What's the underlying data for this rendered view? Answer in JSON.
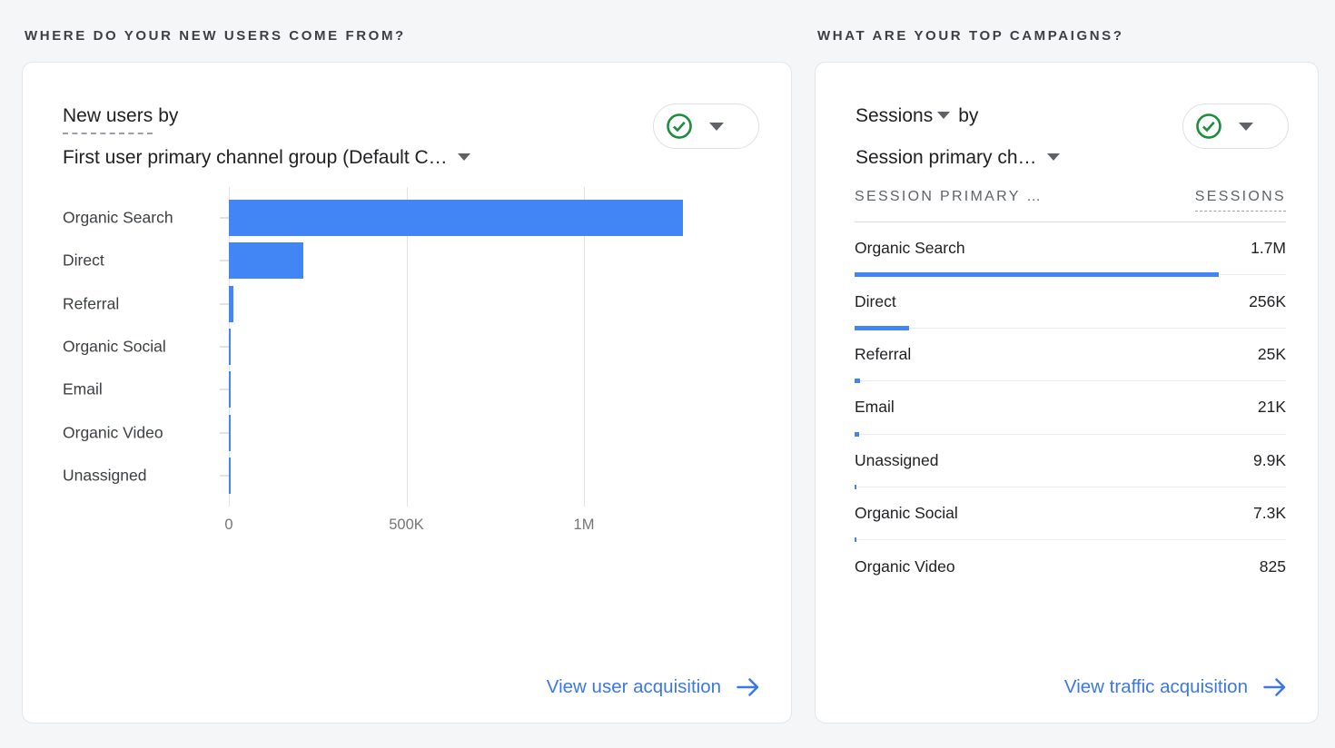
{
  "colors": {
    "bar_blue": "#4285f4",
    "link_blue": "#3b78e7",
    "check_green": "#1e8e3e",
    "background": "#f4f6f8"
  },
  "sections": {
    "left": {
      "heading": "WHERE DO YOUR NEW USERS COME FROM?",
      "metric": "New users",
      "by_label": "by",
      "dimension": "First user primary channel group (Default C…",
      "link_label": "View user acquisition"
    },
    "right": {
      "heading": "WHAT ARE YOUR TOP CAMPAIGNS?",
      "metric": "Sessions",
      "by_label": "by",
      "dimension": "Session primary ch…",
      "col1": "SESSION PRIMARY …",
      "col2": "SESSIONS",
      "link_label": "View traffic acquisition"
    }
  },
  "chart_data": [
    {
      "type": "bar",
      "orientation": "horizontal",
      "title": "New users by First user primary channel group (Default Channel Group)",
      "categories": [
        "Organic Search",
        "Direct",
        "Referral",
        "Organic Social",
        "Email",
        "Organic Video",
        "Unassigned"
      ],
      "values": [
        1280000,
        210000,
        13000,
        5000,
        5000,
        5000,
        5000
      ],
      "x_tick_labels": [
        "0",
        "500K",
        "1M"
      ],
      "x_tick_values": [
        0,
        500000,
        1000000
      ],
      "xlim": [
        0,
        1535000
      ],
      "grid": "vertical-only",
      "legend": "none"
    },
    {
      "type": "table",
      "title": "Sessions by Session primary channel group",
      "columns": [
        "SESSION PRIMARY …",
        "SESSIONS"
      ],
      "rows": [
        {
          "label": "Organic Search",
          "display": "1.7M",
          "value": 1700000
        },
        {
          "label": "Direct",
          "display": "256K",
          "value": 256000
        },
        {
          "label": "Referral",
          "display": "25K",
          "value": 25000
        },
        {
          "label": "Email",
          "display": "21K",
          "value": 21000
        },
        {
          "label": "Unassigned",
          "display": "9.9K",
          "value": 9900
        },
        {
          "label": "Organic Social",
          "display": "7.3K",
          "value": 7300
        },
        {
          "label": "Organic Video",
          "display": "825",
          "value": 825
        }
      ]
    }
  ]
}
